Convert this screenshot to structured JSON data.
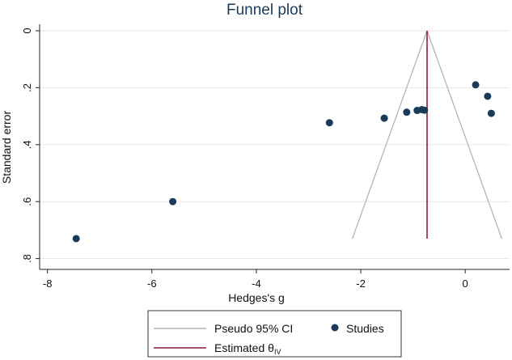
{
  "chart_data": {
    "type": "scatter",
    "title": "Funnel plot",
    "xlabel": "Hedges's g",
    "ylabel": "Standard error",
    "xlim": [
      -8.15,
      0.85
    ],
    "ylim": [
      0,
      0.82
    ],
    "y_inverted": true,
    "x_ticks": [
      -8,
      -6,
      -4,
      -2,
      0
    ],
    "y_ticks": [
      0,
      0.2,
      0.4,
      0.6,
      0.8
    ],
    "x_tick_labels": [
      "-8",
      "-6",
      "-4",
      "-2",
      "0"
    ],
    "y_tick_labels": [
      "0",
      ".2",
      ".4",
      ".6",
      ".8"
    ],
    "grid": "horizontal",
    "studies": [
      {
        "x": -7.45,
        "se": 0.73
      },
      {
        "x": -5.6,
        "se": 0.6
      },
      {
        "x": -2.6,
        "se": 0.323
      },
      {
        "x": -1.55,
        "se": 0.307
      },
      {
        "x": -1.12,
        "se": 0.286
      },
      {
        "x": -0.92,
        "se": 0.28
      },
      {
        "x": -0.83,
        "se": 0.277
      },
      {
        "x": -0.78,
        "se": 0.279
      },
      {
        "x": 0.2,
        "se": 0.19
      },
      {
        "x": 0.43,
        "se": 0.23
      },
      {
        "x": 0.5,
        "se": 0.29
      }
    ],
    "estimate": -0.73,
    "ci_multiplier": 1.96,
    "ci_se_max": 0.73,
    "colors": {
      "studies": "#1a3a5c",
      "pseudo_ci": "#b4b4b4",
      "estimate": "#8b1a3a",
      "grid": "#e6e6e6"
    },
    "legend": {
      "items": [
        {
          "label": "Pseudo 95% CI",
          "kind": "line",
          "color": "#b4b4b4"
        },
        {
          "label": "Studies",
          "kind": "marker",
          "color": "#1a3a5c"
        },
        {
          "label": "Estimated θ",
          "subscript": "IV",
          "kind": "line",
          "color": "#8b1a3a"
        }
      ]
    }
  }
}
